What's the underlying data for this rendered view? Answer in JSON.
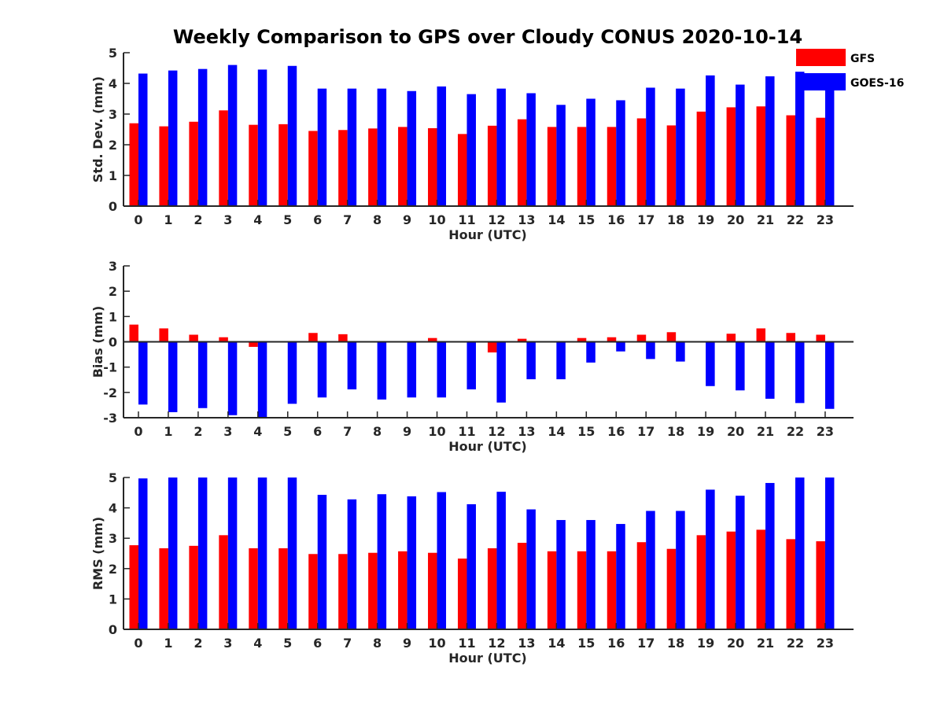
{
  "title": "Weekly Comparison to GPS over Cloudy CONUS 2020-10-14",
  "colors": {
    "gfs": "#ff0000",
    "goes": "#0000ff",
    "axis": "#262626"
  },
  "legend": [
    {
      "name": "GFS",
      "color": "#ff0000"
    },
    {
      "name": "GOES-16",
      "color": "#0000ff"
    }
  ],
  "chart_data": [
    {
      "type": "bar",
      "title": "Weekly Comparison to GPS over Cloudy CONUS 2020-10-14",
      "xlabel": "Hour (UTC)",
      "ylabel": "Std. Dev. (mm)",
      "categories": [
        "0",
        "1",
        "2",
        "3",
        "4",
        "5",
        "6",
        "7",
        "8",
        "9",
        "10",
        "11",
        "12",
        "13",
        "14",
        "15",
        "16",
        "17",
        "18",
        "19",
        "20",
        "21",
        "22",
        "23"
      ],
      "ylim": [
        0,
        5
      ],
      "yticks": [
        "0",
        "1",
        "2",
        "3",
        "4",
        "5"
      ],
      "legend_position": "top-right",
      "grid": false,
      "series": [
        {
          "name": "GFS",
          "values": [
            2.7,
            2.6,
            2.75,
            3.12,
            2.65,
            2.67,
            2.45,
            2.48,
            2.53,
            2.58,
            2.54,
            2.35,
            2.62,
            2.83,
            2.58,
            2.58,
            2.58,
            2.86,
            2.63,
            3.08,
            3.22,
            3.25,
            2.96,
            2.88
          ]
        },
        {
          "name": "GOES-16",
          "values": [
            4.32,
            4.42,
            4.47,
            4.6,
            4.45,
            4.57,
            3.83,
            3.83,
            3.83,
            3.75,
            3.9,
            3.65,
            3.83,
            3.68,
            3.3,
            3.5,
            3.45,
            3.86,
            3.83,
            4.26,
            3.96,
            4.23,
            4.38,
            3.8
          ]
        }
      ]
    },
    {
      "type": "bar",
      "xlabel": "Hour (UTC)",
      "ylabel": "Bias (mm)",
      "categories": [
        "0",
        "1",
        "2",
        "3",
        "4",
        "5",
        "6",
        "7",
        "8",
        "9",
        "10",
        "11",
        "12",
        "13",
        "14",
        "15",
        "16",
        "17",
        "18",
        "19",
        "20",
        "21",
        "22",
        "23"
      ],
      "ylim": [
        -3,
        3
      ],
      "yticks": [
        "-3",
        "-2",
        "-1",
        "0",
        "1",
        "2",
        "3"
      ],
      "grid": false,
      "series": [
        {
          "name": "GFS",
          "values": [
            0.68,
            0.53,
            0.28,
            0.18,
            -0.2,
            -0.03,
            0.35,
            0.3,
            0.02,
            0.0,
            0.15,
            0.03,
            -0.42,
            0.12,
            0.0,
            0.15,
            0.18,
            0.28,
            0.38,
            0.02,
            0.32,
            0.53,
            0.35,
            0.28
          ]
        },
        {
          "name": "GOES-16",
          "values": [
            -2.48,
            -2.78,
            -2.62,
            -2.9,
            -3.0,
            -2.45,
            -2.2,
            -1.88,
            -2.28,
            -2.2,
            -2.2,
            -1.88,
            -2.4,
            -1.48,
            -1.48,
            -0.82,
            -0.38,
            -0.68,
            -0.78,
            -1.75,
            -1.92,
            -2.25,
            -2.42,
            -2.65
          ]
        }
      ]
    },
    {
      "type": "bar",
      "xlabel": "Hour (UTC)",
      "ylabel": "RMS (mm)",
      "categories": [
        "0",
        "1",
        "2",
        "3",
        "4",
        "5",
        "6",
        "7",
        "8",
        "9",
        "10",
        "11",
        "12",
        "13",
        "14",
        "15",
        "16",
        "17",
        "18",
        "19",
        "20",
        "21",
        "22",
        "23"
      ],
      "ylim": [
        0,
        5
      ],
      "yticks": [
        "0",
        "1",
        "2",
        "3",
        "4",
        "5"
      ],
      "grid": false,
      "series": [
        {
          "name": "GFS",
          "values": [
            2.77,
            2.67,
            2.75,
            3.1,
            2.67,
            2.67,
            2.48,
            2.48,
            2.52,
            2.57,
            2.52,
            2.33,
            2.67,
            2.85,
            2.57,
            2.57,
            2.57,
            2.87,
            2.65,
            3.1,
            3.22,
            3.28,
            2.97,
            2.9
          ]
        },
        {
          "name": "GOES-16",
          "values": [
            4.97,
            5.0,
            5.0,
            5.0,
            5.0,
            5.0,
            4.43,
            4.28,
            4.45,
            4.38,
            4.52,
            4.12,
            4.53,
            3.95,
            3.6,
            3.6,
            3.47,
            3.9,
            3.9,
            4.6,
            4.4,
            4.82,
            5.0,
            5.0
          ]
        }
      ]
    }
  ]
}
